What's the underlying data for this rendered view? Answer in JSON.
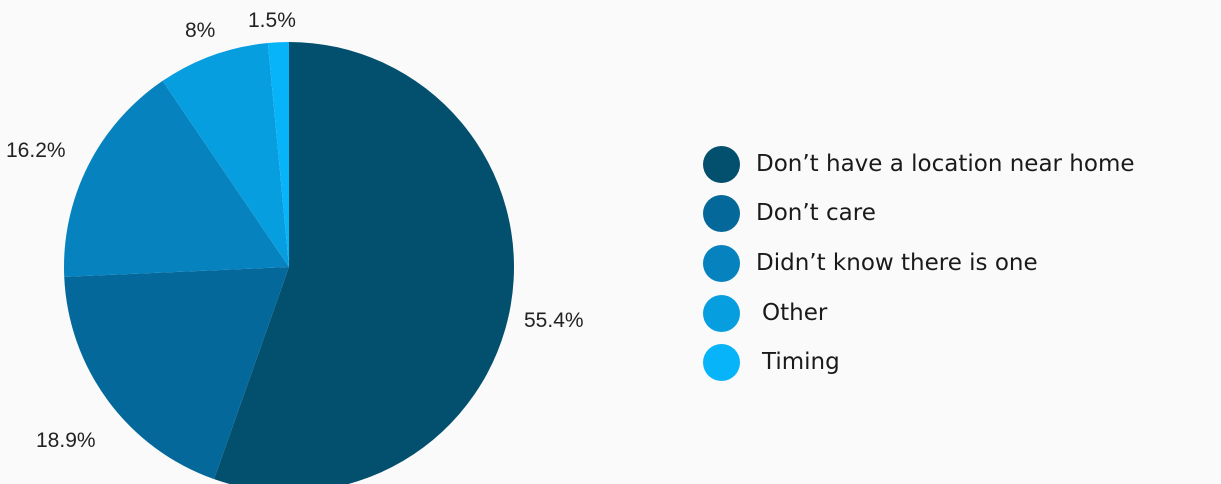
{
  "chart_data": {
    "type": "pie",
    "title": "",
    "start_angle_deg": 0,
    "direction": "clockwise",
    "slices": [
      {
        "label": "Don’t have a location near home",
        "value": 55.4,
        "value_label": "55.4%",
        "color": "#034f6e"
      },
      {
        "label": "Don’t care",
        "value": 18.9,
        "value_label": "18.9%",
        "color": "#04689a"
      },
      {
        "label": "Didn’t know there is one",
        "value": 16.2,
        "value_label": "16.2%",
        "color": "#0682bf"
      },
      {
        "label": "Other",
        "value": 8,
        "value_label": "8%",
        "color": "#079ee0"
      },
      {
        "label": "Timing",
        "value": 1.5,
        "value_label": "1.5%",
        "color": "#08b4f9"
      }
    ],
    "legend_position": "right"
  }
}
